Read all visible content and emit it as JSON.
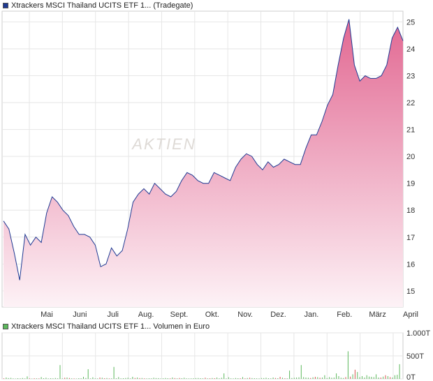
{
  "price_legend": {
    "label": "Xtrackers MSCI Thailand UCITS ETF 1... (Tradegate)",
    "color": "#1f3a93"
  },
  "volume_legend": {
    "label": "Xtrackers MSCI Thailand UCITS ETF 1... Volumen in Euro",
    "color": "#5cb85c"
  },
  "watermark": "AKTIEN",
  "chart_data": [
    {
      "type": "area",
      "series": [
        {
          "name": "Xtrackers MSCI Thailand UCITS ETF 1... (Tradegate)",
          "values": [
            17.6,
            17.3,
            16.4,
            15.4,
            17.1,
            16.7,
            17.0,
            16.8,
            17.9,
            18.5,
            18.3,
            18.0,
            17.8,
            17.4,
            17.1,
            17.1,
            17.0,
            16.7,
            15.9,
            16.0,
            16.6,
            16.3,
            16.5,
            17.3,
            18.3,
            18.6,
            18.8,
            18.6,
            19.0,
            18.8,
            18.6,
            18.5,
            18.7,
            19.1,
            19.4,
            19.3,
            19.1,
            19.0,
            19.0,
            19.4,
            19.3,
            19.2,
            19.1,
            19.6,
            19.9,
            20.1,
            20.0,
            19.7,
            19.5,
            19.8,
            19.6,
            19.7,
            19.9,
            19.8,
            19.7,
            19.7,
            20.3,
            20.8,
            20.8,
            21.3,
            21.9,
            22.3,
            23.4,
            24.4,
            25.1,
            23.4,
            22.8,
            23.0,
            22.9,
            22.9,
            23.0,
            23.4,
            24.4,
            24.8,
            24.3
          ],
          "color": "#1f3a93"
        }
      ],
      "x_tick_labels": [
        "Mai",
        "Juni",
        "Juli",
        "Aug.",
        "Sept.",
        "Okt.",
        "Nov.",
        "Dez.",
        "Jan.",
        "Feb.",
        "März",
        "April"
      ],
      "y_ticks": [
        15,
        16,
        17,
        18,
        19,
        20,
        21,
        22,
        23,
        24,
        25
      ],
      "ylim": [
        14.4,
        25.4
      ],
      "grid": true,
      "fill_gradient": [
        "#e26892",
        "#fdf2f6"
      ]
    },
    {
      "type": "bar",
      "series": [
        {
          "name": "Volumen in Euro",
          "values": [
            12,
            30,
            18,
            22,
            10,
            8,
            15,
            12,
            20,
            10,
            55,
            12,
            8,
            14,
            12,
            10,
            40,
            15,
            25,
            10,
            15,
            12,
            20,
            12,
            300,
            10,
            25,
            30,
            20,
            12,
            10,
            8,
            15,
            14,
            45,
            20,
            210,
            10,
            35,
            12,
            10,
            30,
            25,
            15,
            20,
            10,
            12,
            260,
            14,
            40,
            12,
            15,
            20,
            25,
            10,
            45,
            20,
            30,
            18,
            20,
            12,
            10,
            14,
            12,
            25,
            18,
            16,
            10,
            14,
            20,
            15,
            12,
            30,
            18,
            12,
            20,
            15,
            25,
            12,
            10,
            12,
            14,
            18,
            20,
            15,
            12,
            25,
            12,
            14,
            20,
            15,
            30,
            12,
            25,
            120,
            10,
            35,
            12,
            10,
            20,
            15,
            14,
            40,
            12,
            20,
            25,
            18,
            15,
            12,
            10,
            20,
            18,
            25,
            15,
            12,
            30,
            20,
            15,
            45,
            25,
            14,
            12,
            180,
            20,
            25,
            30,
            35,
            300,
            40,
            30,
            25,
            20,
            35,
            45,
            40,
            25,
            30,
            80,
            20,
            40,
            25,
            30,
            120,
            60,
            25,
            20,
            40,
            600,
            50,
            100,
            200,
            150,
            40,
            60,
            30,
            80,
            50,
            45,
            40,
            100,
            30,
            30,
            50,
            80,
            60,
            40,
            30,
            80,
            90,
            320
          ],
          "colors": [
            "#5cb85c",
            "#d9534f"
          ]
        }
      ],
      "y_tick_labels": [
        "1.000T",
        "500T",
        "0T"
      ],
      "y_ticks": [
        1000,
        500,
        0
      ],
      "ylim": [
        0,
        1000
      ],
      "grid": true
    }
  ]
}
